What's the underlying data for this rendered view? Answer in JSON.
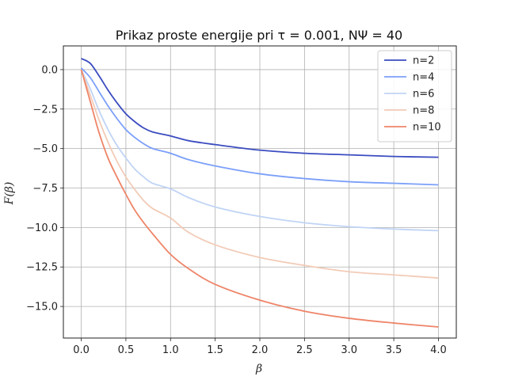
{
  "chart_data": {
    "type": "line",
    "title": "Prikaz proste energije pri τ = 0.001, NΨ = 40",
    "xlabel": "β",
    "ylabel": "F(β)",
    "xlim": [
      -0.2,
      4.2
    ],
    "ylim": [
      -17.0,
      1.5
    ],
    "xticks": [
      0.0,
      0.5,
      1.0,
      1.5,
      2.0,
      2.5,
      3.0,
      3.5,
      4.0
    ],
    "xtick_labels": [
      "0.0",
      "0.5",
      "1.0",
      "1.5",
      "2.0",
      "2.5",
      "3.0",
      "3.5",
      "4.0"
    ],
    "yticks": [
      0.0,
      -2.5,
      -5.0,
      -7.5,
      -10.0,
      -12.5,
      -15.0
    ],
    "ytick_labels": [
      "0.0",
      "−2.5",
      "−5.0",
      "−7.5",
      "−10.0",
      "−12.5",
      "−15.0"
    ],
    "grid": true,
    "legend_position": "top-right",
    "x": [
      0.0,
      0.1,
      0.2,
      0.3,
      0.4,
      0.5,
      0.6,
      0.7,
      0.8,
      1.0,
      1.2,
      1.5,
      2.0,
      2.5,
      3.0,
      3.5,
      4.0
    ],
    "series": [
      {
        "name": "n=2",
        "color": "#3b4cc0",
        "values": [
          0.7,
          0.4,
          -0.4,
          -1.3,
          -2.1,
          -2.8,
          -3.3,
          -3.7,
          -3.95,
          -4.2,
          -4.5,
          -4.75,
          -5.1,
          -5.3,
          -5.4,
          -5.5,
          -5.55
        ]
      },
      {
        "name": "n=4",
        "color": "#7b9ff9",
        "values": [
          0.1,
          -0.5,
          -1.4,
          -2.3,
          -3.1,
          -3.8,
          -4.3,
          -4.7,
          -5.0,
          -5.3,
          -5.7,
          -6.1,
          -6.6,
          -6.9,
          -7.1,
          -7.2,
          -7.3
        ]
      },
      {
        "name": "n=6",
        "color": "#c0d4f5",
        "values": [
          0.0,
          -1.2,
          -2.6,
          -3.8,
          -4.8,
          -5.6,
          -6.3,
          -6.8,
          -7.2,
          -7.55,
          -8.1,
          -8.7,
          -9.3,
          -9.7,
          -9.95,
          -10.1,
          -10.2
        ]
      },
      {
        "name": "n=8",
        "color": "#f2cbb7",
        "values": [
          0.0,
          -1.6,
          -3.2,
          -4.6,
          -5.8,
          -6.8,
          -7.6,
          -8.3,
          -8.8,
          -9.4,
          -10.3,
          -11.1,
          -11.9,
          -12.4,
          -12.8,
          -13.0,
          -13.2
        ]
      },
      {
        "name": "n=10",
        "color": "#ee8468",
        "values": [
          0.0,
          -2.0,
          -4.0,
          -5.6,
          -6.8,
          -7.9,
          -8.9,
          -9.7,
          -10.4,
          -11.7,
          -12.6,
          -13.6,
          -14.6,
          -15.3,
          -15.75,
          -16.05,
          -16.3
        ]
      }
    ]
  }
}
